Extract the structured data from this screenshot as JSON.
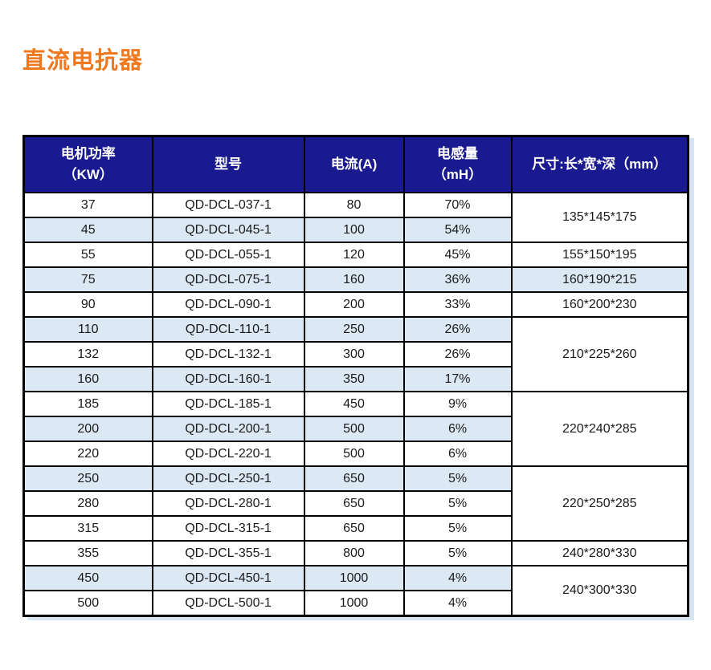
{
  "page": {
    "title": "直流电抗器",
    "title_color": "#f0781e"
  },
  "table": {
    "columns": [
      {
        "label": "电机功率\n（KW）"
      },
      {
        "label": "型号"
      },
      {
        "label": "电流(A)"
      },
      {
        "label": "电感量\n（mH）"
      },
      {
        "label": "尺寸:长*宽*深（mm）"
      }
    ],
    "colors": {
      "header_bg": "#1a1a90",
      "header_text": "#ffffff",
      "row_bg": "#ffffff",
      "row_alt_bg": "#dce9f5",
      "border": "#000000",
      "shadow": "#d7e5f2"
    },
    "rows": [
      {
        "power": "37",
        "model": "QD-DCL-037-1",
        "current": "80",
        "inductance": "70%",
        "shaded": false,
        "dim": {
          "text": "135*145*175",
          "rowspan": 2,
          "shaded": false
        }
      },
      {
        "power": "45",
        "model": "QD-DCL-045-1",
        "current": "100",
        "inductance": "54%",
        "shaded": true,
        "dim": null
      },
      {
        "power": "55",
        "model": "QD-DCL-055-1",
        "current": "120",
        "inductance": "45%",
        "shaded": false,
        "dim": {
          "text": "155*150*195",
          "rowspan": 1,
          "shaded": false
        }
      },
      {
        "power": "75",
        "model": "QD-DCL-075-1",
        "current": "160",
        "inductance": "36%",
        "shaded": true,
        "dim": {
          "text": "160*190*215",
          "rowspan": 1,
          "shaded": true
        }
      },
      {
        "power": "90",
        "model": "QD-DCL-090-1",
        "current": "200",
        "inductance": "33%",
        "shaded": false,
        "dim": {
          "text": "160*200*230",
          "rowspan": 1,
          "shaded": false
        }
      },
      {
        "power": "110",
        "model": "QD-DCL-110-1",
        "current": "250",
        "inductance": "26%",
        "shaded": true,
        "dim": {
          "text": "210*225*260",
          "rowspan": 3,
          "shaded": false
        }
      },
      {
        "power": "132",
        "model": "QD-DCL-132-1",
        "current": "300",
        "inductance": "26%",
        "shaded": false,
        "dim": null
      },
      {
        "power": "160",
        "model": "QD-DCL-160-1",
        "current": "350",
        "inductance": "17%",
        "shaded": true,
        "dim": null
      },
      {
        "power": "185",
        "model": "QD-DCL-185-1",
        "current": "450",
        "inductance": "9%",
        "shaded": false,
        "dim": {
          "text": "220*240*285",
          "rowspan": 3,
          "shaded": false
        }
      },
      {
        "power": "200",
        "model": "QD-DCL-200-1",
        "current": "500",
        "inductance": "6%",
        "shaded": true,
        "dim": null
      },
      {
        "power": "220",
        "model": "QD-DCL-220-1",
        "current": "500",
        "inductance": "6%",
        "shaded": false,
        "dim": null
      },
      {
        "power": "250",
        "model": "QD-DCL-250-1",
        "current": "650",
        "inductance": "5%",
        "shaded": true,
        "dim": {
          "text": "220*250*285",
          "rowspan": 3,
          "shaded": false
        }
      },
      {
        "power": "280",
        "model": "QD-DCL-280-1",
        "current": "650",
        "inductance": "5%",
        "shaded": false,
        "dim": null
      },
      {
        "power": "315",
        "model": "QD-DCL-315-1",
        "current": "650",
        "inductance": "5%",
        "shaded": false,
        "dim": null
      },
      {
        "power": "355",
        "model": "QD-DCL-355-1",
        "current": "800",
        "inductance": "5%",
        "shaded": false,
        "dim": {
          "text": "240*280*330",
          "rowspan": 1,
          "shaded": false
        }
      },
      {
        "power": "450",
        "model": "QD-DCL-450-1",
        "current": "1000",
        "inductance": "4%",
        "shaded": true,
        "dim": {
          "text": "240*300*330",
          "rowspan": 2,
          "shaded": false
        }
      },
      {
        "power": "500",
        "model": "QD-DCL-500-1",
        "current": "1000",
        "inductance": "4%",
        "shaded": false,
        "dim": null
      }
    ]
  }
}
